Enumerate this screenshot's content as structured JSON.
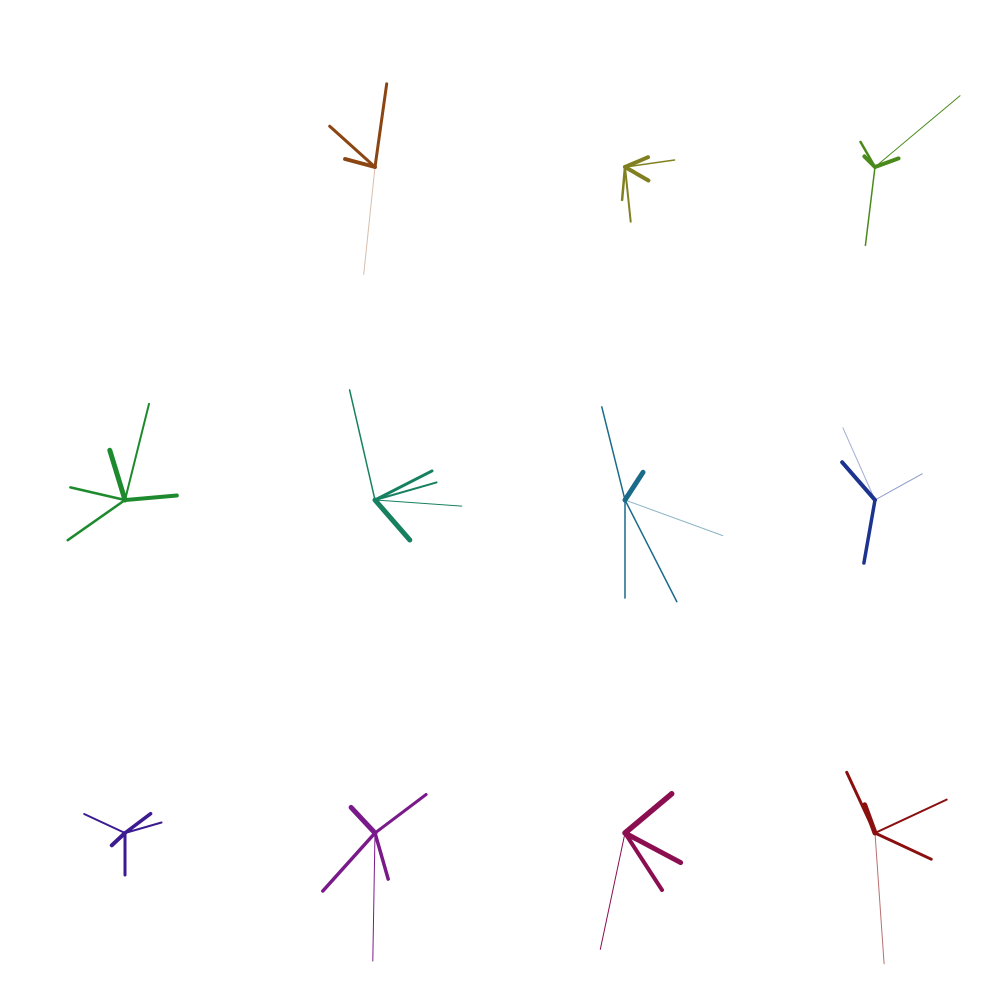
{
  "glyphs": [
    {
      "name": "glyph-brown",
      "color": "#8B4513",
      "rays": [
        {
          "angle": 278,
          "length": 84,
          "weight": 3,
          "opacity": 1
        },
        {
          "angle": 222,
          "length": 61,
          "weight": 3,
          "opacity": 1
        },
        {
          "angle": 195,
          "length": 31,
          "weight": 4,
          "opacity": 1
        },
        {
          "angle": 96,
          "length": 108,
          "weight": 1,
          "opacity": 0.35
        }
      ]
    },
    {
      "name": "glyph-olive",
      "color": "#808020",
      "rays": [
        {
          "angle": 337,
          "length": 25,
          "weight": 4,
          "opacity": 1
        },
        {
          "angle": 352,
          "length": 50,
          "weight": 1.5,
          "opacity": 1
        },
        {
          "angle": 30,
          "length": 27,
          "weight": 4,
          "opacity": 1
        },
        {
          "angle": 95,
          "length": 33,
          "weight": 2.5,
          "opacity": 1
        },
        {
          "angle": 84,
          "length": 55,
          "weight": 2,
          "opacity": 1
        }
      ]
    },
    {
      "name": "glyph-leaf-green",
      "color": "#4A8A1C",
      "rays": [
        {
          "angle": 320,
          "length": 111,
          "weight": 1,
          "opacity": 1
        },
        {
          "angle": 240,
          "length": 29,
          "weight": 2.5,
          "opacity": 1
        },
        {
          "angle": 225,
          "length": 15,
          "weight": 4,
          "opacity": 1
        },
        {
          "angle": 340,
          "length": 25,
          "weight": 4,
          "opacity": 1
        },
        {
          "angle": 97,
          "length": 79,
          "weight": 1.5,
          "opacity": 1
        }
      ]
    },
    {
      "name": "glyph-green",
      "color": "#1E8A2E",
      "rays": [
        {
          "angle": 284,
          "length": 99,
          "weight": 2,
          "opacity": 1
        },
        {
          "angle": 253,
          "length": 52,
          "weight": 5,
          "opacity": 1
        },
        {
          "angle": 193,
          "length": 56,
          "weight": 2.5,
          "opacity": 1
        },
        {
          "angle": 355,
          "length": 52,
          "weight": 4,
          "opacity": 1
        },
        {
          "angle": 145,
          "length": 70,
          "weight": 2.5,
          "opacity": 1
        }
      ]
    },
    {
      "name": "glyph-teal-green",
      "color": "#168060",
      "rays": [
        {
          "angle": 257,
          "length": 113,
          "weight": 1.5,
          "opacity": 1
        },
        {
          "angle": 333,
          "length": 64,
          "weight": 3,
          "opacity": 1
        },
        {
          "angle": 344,
          "length": 64,
          "weight": 2,
          "opacity": 1
        },
        {
          "angle": 4,
          "length": 87,
          "weight": 1,
          "opacity": 1
        },
        {
          "angle": 49,
          "length": 53,
          "weight": 5,
          "opacity": 1
        }
      ]
    },
    {
      "name": "glyph-teal-blue",
      "color": "#1A6A8A",
      "rays": [
        {
          "angle": 256,
          "length": 96,
          "weight": 1.5,
          "opacity": 1
        },
        {
          "angle": 303,
          "length": 33,
          "weight": 5,
          "opacity": 1
        },
        {
          "angle": 20,
          "length": 104,
          "weight": 1,
          "opacity": 0.5
        },
        {
          "angle": 63,
          "length": 114,
          "weight": 1.5,
          "opacity": 1
        },
        {
          "angle": 90,
          "length": 98,
          "weight": 1.5,
          "opacity": 1
        }
      ]
    },
    {
      "name": "glyph-navy",
      "color": "#1C3490",
      "rays": [
        {
          "angle": 246,
          "length": 79,
          "weight": 1,
          "opacity": 0.4
        },
        {
          "angle": 229,
          "length": 50,
          "weight": 4,
          "opacity": 1
        },
        {
          "angle": 331,
          "length": 54,
          "weight": 1,
          "opacity": 0.5
        },
        {
          "angle": 100,
          "length": 64,
          "weight": 3.5,
          "opacity": 1
        }
      ]
    },
    {
      "name": "glyph-indigo",
      "color": "#3C1A90",
      "rays": [
        {
          "angle": 205,
          "length": 45,
          "weight": 2,
          "opacity": 1
        },
        {
          "angle": 323,
          "length": 32,
          "weight": 3.5,
          "opacity": 1
        },
        {
          "angle": 344,
          "length": 38,
          "weight": 2,
          "opacity": 1
        },
        {
          "angle": 137,
          "length": 18,
          "weight": 4,
          "opacity": 1
        },
        {
          "angle": 90,
          "length": 42,
          "weight": 3,
          "opacity": 1
        }
      ]
    },
    {
      "name": "glyph-purple",
      "color": "#7A1A8A",
      "rays": [
        {
          "angle": 227,
          "length": 35,
          "weight": 5,
          "opacity": 1
        },
        {
          "angle": 323,
          "length": 64,
          "weight": 3,
          "opacity": 1
        },
        {
          "angle": 132,
          "length": 78,
          "weight": 3.5,
          "opacity": 1
        },
        {
          "angle": 74,
          "length": 48,
          "weight": 3.5,
          "opacity": 1
        },
        {
          "angle": 91,
          "length": 128,
          "weight": 1,
          "opacity": 1
        }
      ]
    },
    {
      "name": "glyph-magenta",
      "color": "#8A0E50",
      "rays": [
        {
          "angle": 320,
          "length": 61,
          "weight": 5.5,
          "opacity": 1
        },
        {
          "angle": 28,
          "length": 63,
          "weight": 5,
          "opacity": 1
        },
        {
          "angle": 57,
          "length": 68,
          "weight": 4,
          "opacity": 1
        },
        {
          "angle": 102,
          "length": 119,
          "weight": 1,
          "opacity": 1
        }
      ]
    },
    {
      "name": "glyph-crimson",
      "color": "#8A1010",
      "rays": [
        {
          "angle": 86,
          "length": 131,
          "weight": 1,
          "opacity": 0.6
        },
        {
          "angle": 245,
          "length": 67,
          "weight": 3,
          "opacity": 1
        },
        {
          "angle": 250,
          "length": 30,
          "weight": 5,
          "opacity": 1
        },
        {
          "angle": 335,
          "length": 79,
          "weight": 2,
          "opacity": 1
        },
        {
          "angle": 25,
          "length": 62,
          "weight": 3,
          "opacity": 1
        }
      ]
    }
  ]
}
